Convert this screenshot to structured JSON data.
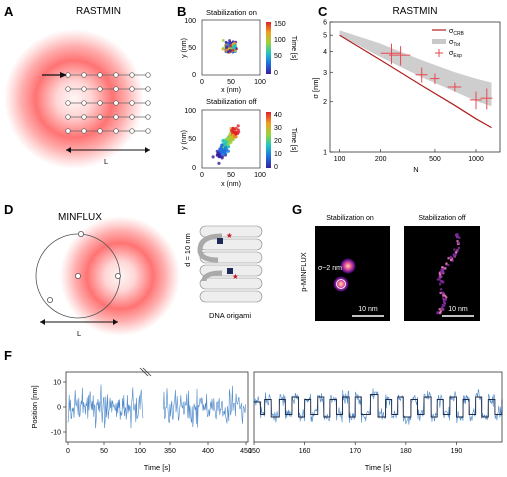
{
  "panels": {
    "A": {
      "letter": "A",
      "title": "RASTMIN",
      "length_label": "L"
    },
    "B": {
      "letter": "B",
      "top_title": "Stabilization on",
      "bottom_title": "Stabilization off",
      "xlabel": "x (nm)",
      "ylabel": "y (nm)",
      "ticks": [
        "0",
        "50",
        "100"
      ],
      "colorbar_label": "Time [s]",
      "colorbar_top_ticks": [
        "150",
        "100",
        "50",
        "0"
      ],
      "colorbar_bottom_ticks": [
        "40",
        "30",
        "20",
        "10",
        "0"
      ]
    },
    "C": {
      "letter": "C",
      "title": "RASTMIN"
    },
    "D": {
      "letter": "D",
      "title": "MINFLUX",
      "length_label": "L"
    },
    "E": {
      "letter": "E",
      "distance_label": "d = 10 nm",
      "caption": "DNA origami"
    },
    "G": {
      "letter": "G",
      "side_label": "p-MINFLUX",
      "left_title": "Stabilization on",
      "right_title": "Stabilization off",
      "sigma_label": "σ~2 nm",
      "scalebar_left": "10 nm",
      "scalebar_right": "10 nm"
    },
    "F": {
      "letter": "F",
      "ylabel": "Position [nm]",
      "xlabel_left": "Time [s]",
      "xlabel_right": "Time [s]"
    }
  },
  "colors": {
    "doughnut": "#ff5a5a",
    "crb": "#b01e1e",
    "exp": "#e8484f",
    "trace": "#4a86c8",
    "step": "#1f2a44",
    "band": "#c9c9c9"
  },
  "chart_data": [
    {
      "panel": "C",
      "type": "line",
      "title": "RASTMIN",
      "xlabel": "N",
      "ylabel": "σ [nm]",
      "xscale": "log",
      "yscale": "log",
      "xlim": [
        85,
        1500
      ],
      "ylim": [
        1,
        6
      ],
      "xticks": [
        100,
        200,
        500,
        1000
      ],
      "xtick_labels": [
        "100",
        "200",
        "500",
        "1000"
      ],
      "yticks": [
        1,
        2,
        3,
        4,
        5,
        6
      ],
      "ytick_labels": [
        "1",
        "2",
        "3",
        "4",
        "5",
        "6"
      ],
      "legend_position": "top-right",
      "legend": [
        {
          "main": "σ",
          "sub": "CRB"
        },
        {
          "main": "σ",
          "sub": "Tot"
        },
        {
          "main": "σ",
          "sub": "Exp"
        }
      ],
      "series": [
        {
          "name": "σCRB",
          "kind": "line",
          "x": [
            100,
            200,
            400,
            700,
            1000,
            1300
          ],
          "y": [
            5.0,
            3.55,
            2.5,
            1.9,
            1.58,
            1.4
          ]
        },
        {
          "name": "σTot",
          "kind": "band",
          "x": [
            100,
            200,
            400,
            700,
            1000,
            1300
          ],
          "y_low": [
            5.0,
            3.7,
            2.8,
            2.3,
            2.02,
            1.88
          ],
          "y_high": [
            5.35,
            4.45,
            3.55,
            3.0,
            2.75,
            2.6
          ]
        },
        {
          "name": "σExp",
          "kind": "errorbar",
          "x": [
            240,
            280,
            400,
            500,
            700,
            1000,
            1200
          ],
          "y": [
            3.9,
            3.8,
            2.9,
            2.75,
            2.45,
            2.05,
            2.1
          ],
          "xerr": [
            40,
            50,
            40,
            40,
            80,
            100,
            120
          ],
          "yerr": [
            0.55,
            0.5,
            0.3,
            0.2,
            0.15,
            0.25,
            0.3
          ]
        }
      ]
    },
    {
      "panel": "F",
      "type": "line",
      "ylabel": "Position [nm]",
      "ylim": [
        -14,
        14
      ],
      "yticks": [
        -10,
        0,
        10
      ],
      "ytick_labels": [
        "-10",
        "0",
        "10"
      ],
      "left_xticks": [
        "0",
        "50",
        "100",
        "350",
        "400",
        "450"
      ],
      "right_xlim": [
        150,
        199
      ],
      "right_xticks": [
        150,
        160,
        170,
        180,
        190
      ],
      "right_xtick_labels": [
        "150",
        "160",
        "170",
        "180",
        "190"
      ],
      "step_series": {
        "name": "",
        "x": [
          150,
          151.3,
          152.1,
          153.4,
          155.0,
          156.2,
          157.5,
          158.8,
          160.0,
          161.2,
          162.6,
          163.8,
          165.0,
          166.3,
          167.5,
          168.8,
          170.0,
          171.2,
          173.0,
          174.5,
          176.0,
          177.2,
          178.4,
          179.5,
          181.0,
          182.3,
          183.6,
          185.0,
          186.2,
          187.4,
          188.7,
          190.0,
          191.3,
          192.5,
          193.8,
          195.0,
          196.3,
          197.6,
          199
        ],
        "y": [
          2,
          -3,
          3,
          -4,
          3,
          -3,
          4,
          -4,
          3,
          -3,
          4,
          -4,
          3,
          -3,
          4,
          -4,
          4,
          -3,
          5,
          -4,
          3,
          -3,
          4,
          -4,
          3,
          -3,
          4,
          -4,
          3,
          -3,
          4,
          -4,
          3,
          -3,
          4,
          -4,
          3,
          -3,
          3
        ]
      }
    }
  ]
}
